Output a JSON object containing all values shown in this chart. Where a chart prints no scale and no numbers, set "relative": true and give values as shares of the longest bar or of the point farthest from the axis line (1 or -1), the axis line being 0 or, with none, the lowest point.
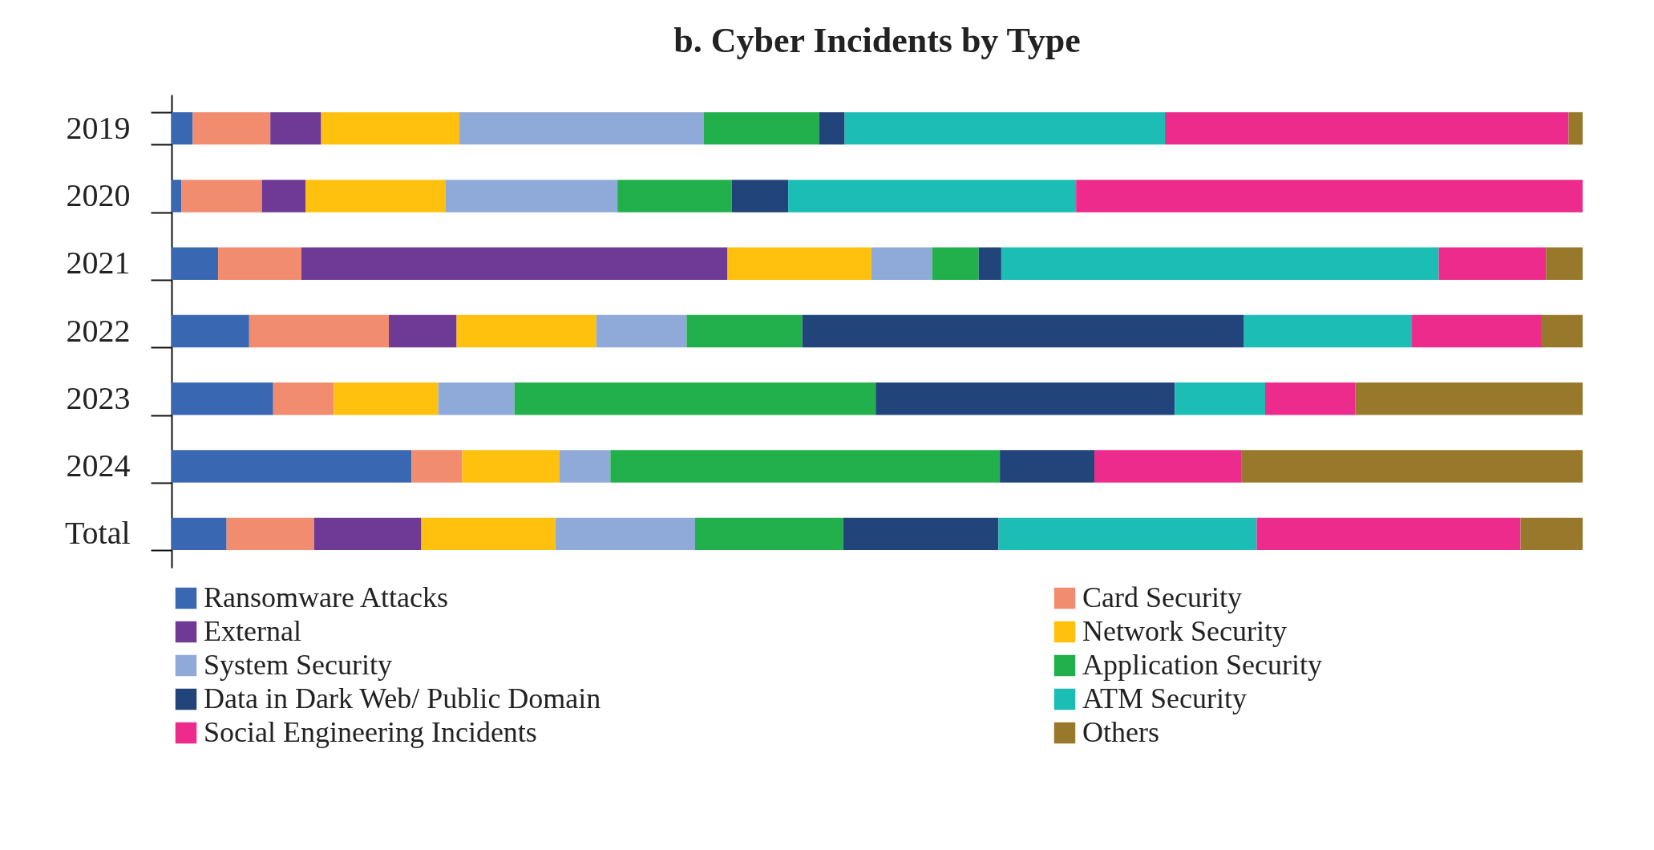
{
  "chart_data": {
    "type": "bar",
    "orientation": "horizontal",
    "stacked": true,
    "relative": true,
    "title": "b. Cyber Incidents by Type",
    "legend": "bottom",
    "categories": [
      "2019",
      "2020",
      "2021",
      "2022",
      "2023",
      "2024",
      "Total"
    ],
    "series": [
      {
        "name": "Ransomware Attacks",
        "color": "#3a67b1",
        "values": [
          0.015,
          0.007,
          0.033,
          0.055,
          0.072,
          0.17,
          0.039
        ]
      },
      {
        "name": "Card Security",
        "color": "#f28c6e",
        "values": [
          0.055,
          0.057,
          0.059,
          0.099,
          0.043,
          0.036,
          0.062
        ]
      },
      {
        "name": "External",
        "color": "#6f3996",
        "values": [
          0.036,
          0.031,
          0.302,
          0.048,
          0,
          0,
          0.076
        ]
      },
      {
        "name": "Network Security",
        "color": "#ffc10e",
        "values": [
          0.098,
          0.099,
          0.102,
          0.099,
          0.074,
          0.069,
          0.095
        ]
      },
      {
        "name": "System Security",
        "color": "#8faad9",
        "values": [
          0.173,
          0.122,
          0.043,
          0.064,
          0.054,
          0.036,
          0.099
        ]
      },
      {
        "name": "Application Security",
        "color": "#21b04b",
        "values": [
          0.082,
          0.081,
          0.033,
          0.082,
          0.256,
          0.276,
          0.105
        ]
      },
      {
        "name": "Data in Dark Web/ Public Domain",
        "color": "#21457a",
        "values": [
          0.018,
          0.04,
          0.016,
          0.313,
          0.212,
          0.067,
          0.11
        ]
      },
      {
        "name": "ATM Security",
        "color": "#1bbdb5",
        "values": [
          0.227,
          0.204,
          0.31,
          0.119,
          0.064,
          0,
          0.183
        ]
      },
      {
        "name": "Social Engineering Incidents",
        "color": "#ec2b8c",
        "values": [
          0.286,
          0.359,
          0.076,
          0.092,
          0.064,
          0.104,
          0.187
        ]
      },
      {
        "name": "Others",
        "color": "#98782a",
        "values": [
          0.01,
          0,
          0.026,
          0.029,
          0.161,
          0.242,
          0.044
        ]
      }
    ]
  }
}
